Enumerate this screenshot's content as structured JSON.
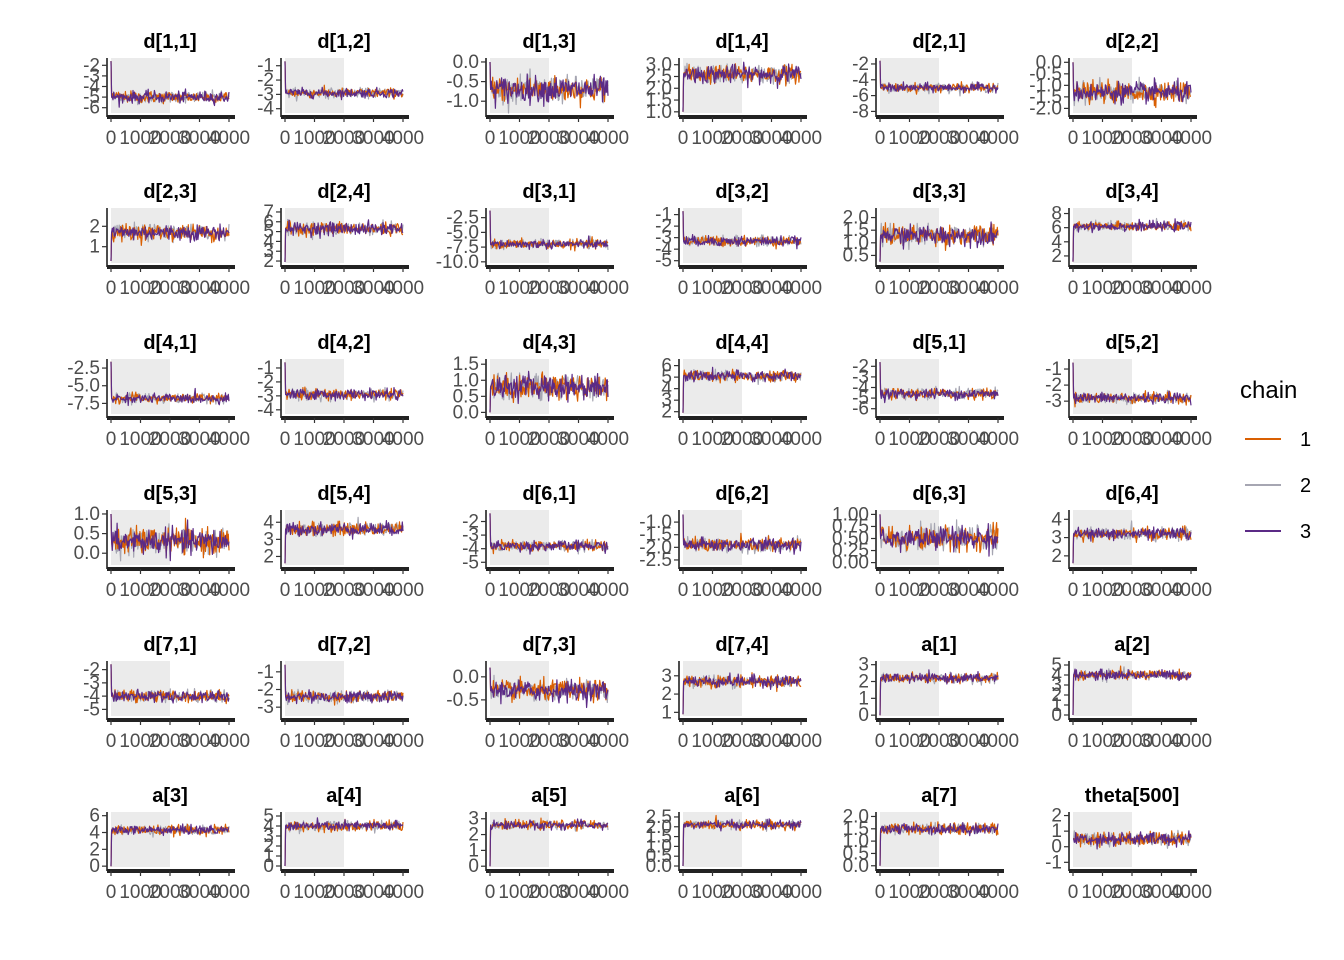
{
  "chart_data": {
    "type": "line",
    "layout": "6x6 facet grid",
    "iterations": 4000,
    "warmup": 2000,
    "legend": {
      "title": "chain",
      "position": "right",
      "items": [
        {
          "label": "1",
          "color": "#d95f02"
        },
        {
          "label": "2",
          "color": "#a6a6b2"
        },
        {
          "label": "3",
          "color": "#5b2a86"
        }
      ]
    },
    "warmup_shade_color": "#ebebeb",
    "xticks": [
      "0",
      "1000",
      "2000",
      "3000",
      "4000"
    ],
    "panels": [
      {
        "title": "d[1,1]",
        "yticks": [
          -6,
          -5,
          -4,
          -3,
          -2
        ],
        "ylim": [
          -6.5,
          -1.5
        ],
        "center": -5.0,
        "spread": 0.5,
        "start": -1.6
      },
      {
        "title": "d[1,2]",
        "yticks": [
          -4,
          -3,
          -2,
          -1
        ],
        "ylim": [
          -4.3,
          -0.6
        ],
        "center": -2.9,
        "spread": 0.3,
        "start": -0.7
      },
      {
        "title": "d[1,3]",
        "yticks": [
          -1.0,
          -0.5,
          0.0
        ],
        "ylim": [
          -1.3,
          0.05
        ],
        "center": -0.7,
        "spread": 0.3,
        "start": 0.0
      },
      {
        "title": "d[1,4]",
        "yticks": [
          1.0,
          1.5,
          2.0,
          2.5,
          3.0
        ],
        "ylim": [
          0.95,
          3.2
        ],
        "center": 2.6,
        "spread": 0.35,
        "start": 1.0
      },
      {
        "title": "d[2,1]",
        "yticks": [
          -8,
          -6,
          -4,
          -2
        ],
        "ylim": [
          -8.2,
          -1.5
        ],
        "center": -5.0,
        "spread": 0.5,
        "start": -1.6
      },
      {
        "title": "d[2,2]",
        "yticks": [
          -2.0,
          -1.5,
          -1.0,
          -0.5,
          0.0
        ],
        "ylim": [
          -2.2,
          0.1
        ],
        "center": -1.3,
        "spread": 0.4,
        "start": 0.0
      },
      {
        "title": "d[2,3]",
        "yticks": [
          1,
          2
        ],
        "ylim": [
          0.2,
          2.8
        ],
        "center": 1.7,
        "spread": 0.35,
        "start": 0.3
      },
      {
        "title": "d[2,4]",
        "yticks": [
          2,
          3,
          4,
          5,
          6,
          7
        ],
        "ylim": [
          1.8,
          7.2
        ],
        "center": 5.3,
        "spread": 0.6,
        "start": 1.9
      },
      {
        "title": "d[3,1]",
        "yticks": [
          -10.0,
          -7.5,
          -5.0,
          -2.5
        ],
        "ylim": [
          -10.2,
          -1.2
        ],
        "center": -7.0,
        "spread": 0.7,
        "start": -1.3
      },
      {
        "title": "d[3,2]",
        "yticks": [
          -5,
          -4,
          -3,
          -2,
          -1
        ],
        "ylim": [
          -5.2,
          -0.6
        ],
        "center": -3.3,
        "spread": 0.4,
        "start": -0.7
      },
      {
        "title": "d[3,3]",
        "yticks": [
          0.5,
          1.0,
          1.5,
          2.0
        ],
        "ylim": [
          0.2,
          2.3
        ],
        "center": 1.3,
        "spread": 0.35,
        "start": 0.25
      },
      {
        "title": "d[3,4]",
        "yticks": [
          2,
          4,
          6,
          8
        ],
        "ylim": [
          1.0,
          8.5
        ],
        "center": 6.2,
        "spread": 0.6,
        "start": 1.2
      },
      {
        "title": "d[4,1]",
        "yticks": [
          -7.5,
          -5.0,
          -2.5
        ],
        "ylim": [
          -9.0,
          -1.5
        ],
        "center": -6.8,
        "spread": 0.6,
        "start": -1.6
      },
      {
        "title": "d[4,2]",
        "yticks": [
          -4,
          -3,
          -2,
          -1
        ],
        "ylim": [
          -4.3,
          -0.5
        ],
        "center": -2.9,
        "spread": 0.35,
        "start": -0.6
      },
      {
        "title": "d[4,3]",
        "yticks": [
          0.0,
          0.5,
          1.0,
          1.5
        ],
        "ylim": [
          -0.05,
          1.6
        ],
        "center": 0.8,
        "spread": 0.35,
        "start": 0.0
      },
      {
        "title": "d[4,4]",
        "yticks": [
          2,
          3,
          4,
          5,
          6
        ],
        "ylim": [
          1.8,
          6.4
        ],
        "center": 5.1,
        "spread": 0.45,
        "start": 1.9
      },
      {
        "title": "d[5,1]",
        "yticks": [
          -6,
          -5,
          -4,
          -3,
          -2
        ],
        "ylim": [
          -6.5,
          -1.5
        ],
        "center": -4.6,
        "spread": 0.45,
        "start": -1.6
      },
      {
        "title": "d[5,2]",
        "yticks": [
          -3,
          -2,
          -1
        ],
        "ylim": [
          -3.8,
          -0.5
        ],
        "center": -2.8,
        "spread": 0.3,
        "start": -0.6
      },
      {
        "title": "d[5,3]",
        "yticks": [
          0.0,
          0.5,
          1.0
        ],
        "ylim": [
          -0.3,
          1.05
        ],
        "center": 0.3,
        "spread": 0.3,
        "start": 1.0
      },
      {
        "title": "d[5,4]",
        "yticks": [
          2,
          3,
          4
        ],
        "ylim": [
          1.5,
          4.6
        ],
        "center": 3.6,
        "spread": 0.35,
        "start": 1.6
      },
      {
        "title": "d[6,1]",
        "yticks": [
          -5,
          -4,
          -3,
          -2
        ],
        "ylim": [
          -5.2,
          -1.3
        ],
        "center": -3.8,
        "spread": 0.35,
        "start": -1.4
      },
      {
        "title": "d[6,2]",
        "yticks": [
          -2.5,
          -2.0,
          -1.5,
          -1.0
        ],
        "ylim": [
          -2.7,
          -0.6
        ],
        "center": -1.9,
        "spread": 0.25,
        "start": -0.7
      },
      {
        "title": "d[6,3]",
        "yticks": [
          0.0,
          0.25,
          0.5,
          0.75,
          1.0
        ],
        "ylim": [
          -0.05,
          1.05
        ],
        "center": 0.5,
        "spread": 0.22,
        "start": 1.0
      },
      {
        "title": "d[6,4]",
        "yticks": [
          2,
          3,
          4
        ],
        "ylim": [
          1.5,
          4.4
        ],
        "center": 3.2,
        "spread": 0.3,
        "start": 1.6
      },
      {
        "title": "d[7,1]",
        "yticks": [
          -5,
          -4,
          -3,
          -2
        ],
        "ylim": [
          -5.5,
          -1.5
        ],
        "center": -4.0,
        "spread": 0.4,
        "start": -1.6
      },
      {
        "title": "d[7,2]",
        "yticks": [
          -3,
          -2,
          -1
        ],
        "ylim": [
          -3.5,
          -0.5
        ],
        "center": -2.4,
        "spread": 0.3,
        "start": -0.6
      },
      {
        "title": "d[7,3]",
        "yticks": [
          -0.5,
          0.0
        ],
        "ylim": [
          -0.85,
          0.3
        ],
        "center": -0.3,
        "spread": 0.2,
        "start": 0.2
      },
      {
        "title": "d[7,4]",
        "yticks": [
          1,
          2,
          3
        ],
        "ylim": [
          0.8,
          3.7
        ],
        "center": 2.7,
        "spread": 0.3,
        "start": 0.9
      },
      {
        "title": "a[1]",
        "yticks": [
          0,
          1,
          2,
          3
        ],
        "ylim": [
          -0.05,
          3.1
        ],
        "center": 2.2,
        "spread": 0.25,
        "start": 0.0
      },
      {
        "title": "a[2]",
        "yticks": [
          0,
          1,
          2,
          3,
          4,
          5
        ],
        "ylim": [
          -0.1,
          5.2
        ],
        "center": 4.0,
        "spread": 0.45,
        "start": 0.0
      },
      {
        "title": "a[3]",
        "yticks": [
          0,
          2,
          4,
          6
        ],
        "ylim": [
          -0.1,
          6.2
        ],
        "center": 4.3,
        "spread": 0.5,
        "start": 0.0
      },
      {
        "title": "a[4]",
        "yticks": [
          0,
          1,
          2,
          3,
          4,
          5
        ],
        "ylim": [
          -0.1,
          5.2
        ],
        "center": 4.0,
        "spread": 0.45,
        "start": 0.0
      },
      {
        "title": "a[5]",
        "yticks": [
          0,
          1,
          2,
          3
        ],
        "ylim": [
          -0.05,
          3.3
        ],
        "center": 2.6,
        "spread": 0.25,
        "start": 0.0
      },
      {
        "title": "a[6]",
        "yticks": [
          0.0,
          0.5,
          1.0,
          1.5,
          2.0,
          2.5
        ],
        "ylim": [
          -0.05,
          2.65
        ],
        "center": 2.1,
        "spread": 0.2,
        "start": 0.0
      },
      {
        "title": "a[7]",
        "yticks": [
          0.0,
          0.5,
          1.0,
          1.5,
          2.0
        ],
        "ylim": [
          -0.05,
          2.1
        ],
        "center": 1.5,
        "spread": 0.2,
        "start": 0.0
      },
      {
        "title": "theta[500]",
        "yticks": [
          -1,
          0,
          1,
          2
        ],
        "ylim": [
          -1.3,
          2.1
        ],
        "center": 0.5,
        "spread": 0.4,
        "start": 0.5
      }
    ]
  }
}
